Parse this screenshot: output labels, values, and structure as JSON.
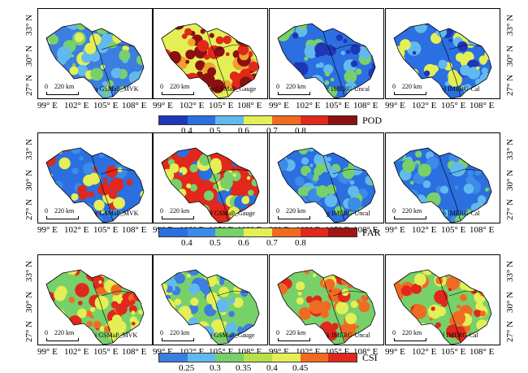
{
  "rows": [
    {
      "metric": "POD",
      "ticks": [
        "0.4",
        "0.5",
        "0.6",
        "0.7",
        "0.8"
      ],
      "colors": [
        "#1f36b8",
        "#2b6fe0",
        "#62b9ee",
        "#e4ef55",
        "#f06b22",
        "#e0281c",
        "#8b1010"
      ],
      "panels": [
        {
          "label": "a GSMaP_MVK",
          "scheme": [
            "#3c7de0",
            "#62b9ee",
            "#78d06a",
            "#e4ef55"
          ]
        },
        {
          "label": "b GSMaP_Gauge",
          "scheme": [
            "#e4ef55",
            "#f0a030",
            "#e0281c",
            "#8b1010"
          ]
        },
        {
          "label": "c IMERG-Uncal",
          "scheme": [
            "#2b6fe0",
            "#1f36b8",
            "#62b9ee",
            "#78d06a"
          ]
        },
        {
          "label": "d IMERG-Cal",
          "scheme": [
            "#2b6fe0",
            "#1f36b8",
            "#62b9ee",
            "#e4ef55"
          ]
        }
      ]
    },
    {
      "metric": "FAR",
      "ticks": [
        "0.4",
        "0.5",
        "0.6",
        "0.7",
        "0.8"
      ],
      "colors": [
        "#2b6fe0",
        "#3c8be8",
        "#78d06a",
        "#e4ef55",
        "#f06b22",
        "#e0281c",
        "#a21414"
      ],
      "panels": [
        {
          "label": "e GSMaP_MVK",
          "scheme": [
            "#2b6fe0",
            "#3c8be8",
            "#e4ef55",
            "#e0281c"
          ]
        },
        {
          "label": "f GSMaP_Gauge",
          "scheme": [
            "#e0281c",
            "#e4ef55",
            "#78d06a",
            "#2b6fe0"
          ]
        },
        {
          "label": "g IMERG-Uncal",
          "scheme": [
            "#2b6fe0",
            "#3c8be8",
            "#62b9ee",
            "#78d06a"
          ]
        },
        {
          "label": "h IMERG-Cal",
          "scheme": [
            "#2b6fe0",
            "#3c8be8",
            "#62b9ee",
            "#78d06a"
          ]
        }
      ]
    },
    {
      "metric": "CSI",
      "ticks": [
        "0.25",
        "0.3",
        "0.35",
        "0.4",
        "0.45"
      ],
      "colors": [
        "#3c7de0",
        "#62b9ee",
        "#78d06a",
        "#b9e04a",
        "#e4ef55",
        "#f06b22",
        "#e0281c"
      ],
      "panels": [
        {
          "label": "i GSMaP_MVK",
          "scheme": [
            "#78d06a",
            "#e4ef55",
            "#f06b22",
            "#e0281c"
          ]
        },
        {
          "label": "j GSMaP_Gauge",
          "scheme": [
            "#78d06a",
            "#62b9ee",
            "#e4ef55",
            "#3c7de0"
          ]
        },
        {
          "label": "k IMERG-Uncal",
          "scheme": [
            "#78d06a",
            "#e4ef55",
            "#f06b22",
            "#e0281c"
          ]
        },
        {
          "label": "l IMERG-Cal",
          "scheme": [
            "#78d06a",
            "#e4ef55",
            "#e0281c",
            "#f06b22"
          ]
        }
      ]
    }
  ],
  "scale_bar": {
    "zero": "0",
    "distance": "220 km"
  },
  "lat_labels": [
    "27° N",
    "30° N",
    "33° N"
  ],
  "lon_labels": [
    "99° E",
    "102° E",
    "105° E",
    "108° E"
  ]
}
